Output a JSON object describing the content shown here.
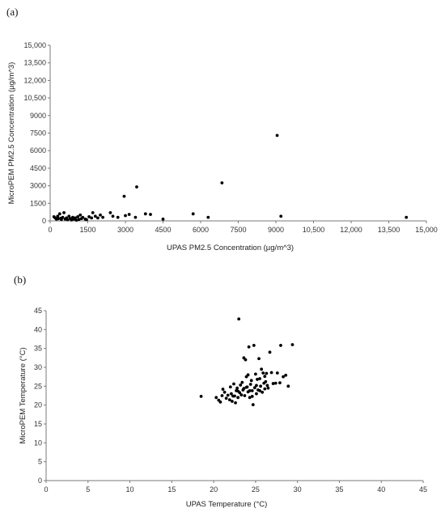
{
  "chart_data": [
    {
      "panel_label": "(a)",
      "type": "scatter",
      "xlabel": "UPAS PM2.5 Concentration (µg/m^3)",
      "ylabel": "MicroPEM PM2.5 Concentration (µg/m^3)",
      "xlim": [
        0,
        15000
      ],
      "ylim": [
        0,
        15000
      ],
      "xticks": [
        "0",
        "1500",
        "3000",
        "4500",
        "6000",
        "7500",
        "9000",
        "10,500",
        "12,000",
        "13,500",
        "15,000"
      ],
      "yticks": [
        "0",
        "1500",
        "3000",
        "4500",
        "6000",
        "7500",
        "9000",
        "10,500",
        "12,000",
        "13,500",
        "15,000"
      ],
      "point_color": "#000000",
      "grid": false,
      "points": [
        [
          150,
          350
        ],
        [
          200,
          250
        ],
        [
          250,
          150
        ],
        [
          300,
          400
        ],
        [
          320,
          180
        ],
        [
          380,
          600
        ],
        [
          420,
          220
        ],
        [
          450,
          120
        ],
        [
          500,
          300
        ],
        [
          550,
          700
        ],
        [
          600,
          150
        ],
        [
          650,
          250
        ],
        [
          700,
          100
        ],
        [
          750,
          400
        ],
        [
          800,
          200
        ],
        [
          850,
          80
        ],
        [
          900,
          300
        ],
        [
          950,
          150
        ],
        [
          1000,
          250
        ],
        [
          1050,
          60
        ],
        [
          1100,
          350
        ],
        [
          1150,
          120
        ],
        [
          1200,
          500
        ],
        [
          1250,
          200
        ],
        [
          1300,
          300
        ],
        [
          1400,
          150
        ],
        [
          1450,
          100
        ],
        [
          1550,
          350
        ],
        [
          1650,
          250
        ],
        [
          1700,
          700
        ],
        [
          1800,
          400
        ],
        [
          1900,
          250
        ],
        [
          2000,
          500
        ],
        [
          2100,
          300
        ],
        [
          2400,
          700
        ],
        [
          2500,
          400
        ],
        [
          2700,
          300
        ],
        [
          2950,
          2100
        ],
        [
          3000,
          450
        ],
        [
          3150,
          550
        ],
        [
          3400,
          300
        ],
        [
          3450,
          2900
        ],
        [
          3800,
          600
        ],
        [
          4000,
          550
        ],
        [
          4500,
          150
        ],
        [
          5700,
          600
        ],
        [
          6300,
          300
        ],
        [
          6850,
          3250
        ],
        [
          9050,
          7300
        ],
        [
          9200,
          400
        ],
        [
          14200,
          300
        ]
      ]
    },
    {
      "panel_label": "(b)",
      "type": "scatter",
      "xlabel": "UPAS Temperature (°C)",
      "ylabel": "MicroPEM Temperature (°C)",
      "xlim": [
        0,
        45
      ],
      "ylim": [
        0,
        45
      ],
      "xticks": [
        "0",
        "5",
        "10",
        "15",
        "20",
        "25",
        "30",
        "35",
        "40",
        "45"
      ],
      "yticks": [
        "0",
        "5",
        "10",
        "15",
        "20",
        "25",
        "30",
        "35",
        "40",
        "45"
      ],
      "point_color": "#000000",
      "grid": false,
      "points": [
        [
          18.5,
          22.3
        ],
        [
          20.3,
          22.0
        ],
        [
          20.6,
          21.3
        ],
        [
          20.8,
          20.8
        ],
        [
          21.0,
          22.5
        ],
        [
          21.1,
          24.2
        ],
        [
          21.3,
          23.4
        ],
        [
          21.5,
          21.8
        ],
        [
          21.7,
          22.6
        ],
        [
          21.9,
          21.4
        ],
        [
          22.0,
          24.8
        ],
        [
          22.1,
          23.0
        ],
        [
          22.2,
          21.0
        ],
        [
          22.4,
          25.6
        ],
        [
          22.5,
          22.4
        ],
        [
          22.6,
          20.6
        ],
        [
          22.7,
          23.8
        ],
        [
          22.8,
          24.5
        ],
        [
          22.9,
          22.0
        ],
        [
          23.0,
          42.8
        ],
        [
          23.1,
          23.3
        ],
        [
          23.2,
          25.3
        ],
        [
          23.3,
          22.7
        ],
        [
          23.4,
          26.0
        ],
        [
          23.5,
          24.0
        ],
        [
          23.6,
          32.5
        ],
        [
          23.7,
          22.5
        ],
        [
          23.8,
          32.0
        ],
        [
          23.9,
          27.5
        ],
        [
          24.0,
          24.8
        ],
        [
          24.1,
          23.5
        ],
        [
          24.2,
          35.4
        ],
        [
          24.3,
          22.0
        ],
        [
          24.4,
          25.5
        ],
        [
          24.5,
          26.5
        ],
        [
          24.6,
          23.8
        ],
        [
          24.7,
          20.1
        ],
        [
          24.8,
          35.8
        ],
        [
          24.9,
          24.6
        ],
        [
          25.0,
          28.2
        ],
        [
          25.1,
          23.0
        ],
        [
          25.2,
          26.8
        ],
        [
          25.3,
          24.0
        ],
        [
          25.4,
          32.3
        ],
        [
          25.5,
          27.0
        ],
        [
          25.6,
          25.0
        ],
        [
          25.7,
          29.5
        ],
        [
          25.8,
          23.4
        ],
        [
          25.9,
          28.5
        ],
        [
          26.0,
          25.8
        ],
        [
          26.1,
          24.3
        ],
        [
          26.2,
          26.2
        ],
        [
          26.3,
          28.4
        ],
        [
          26.4,
          25.2
        ],
        [
          26.5,
          24.5
        ],
        [
          26.7,
          34.0
        ],
        [
          26.9,
          28.6
        ],
        [
          27.1,
          25.7
        ],
        [
          27.4,
          25.8
        ],
        [
          27.6,
          28.5
        ],
        [
          27.9,
          25.9
        ],
        [
          28.0,
          35.8
        ],
        [
          28.3,
          27.5
        ],
        [
          28.6,
          27.9
        ],
        [
          28.9,
          25.0
        ],
        [
          29.4,
          36.0
        ],
        [
          23.6,
          24.4
        ],
        [
          24.3,
          23.8
        ],
        [
          25.1,
          25.2
        ],
        [
          24.1,
          28.0
        ],
        [
          24.6,
          22.3
        ],
        [
          23.9,
          24.7
        ],
        [
          25.5,
          23.8
        ],
        [
          26.1,
          27.6
        ],
        [
          22.3,
          22.4
        ],
        [
          22.9,
          23.7
        ]
      ]
    }
  ]
}
